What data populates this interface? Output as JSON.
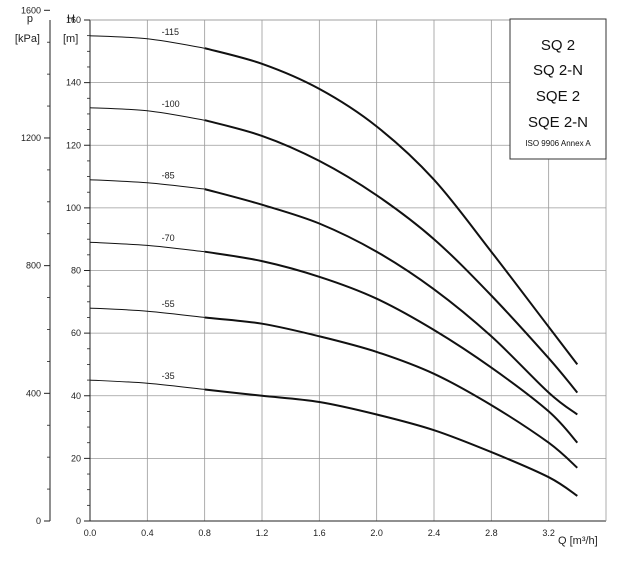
{
  "chart_data": {
    "type": "line",
    "title_lines": [
      "SQ 2",
      "SQ 2-N",
      "SQE 2",
      "SQE 2-N"
    ],
    "subtitle": "ISO 9906 Annex A",
    "xlabel": "Q [m³/h]",
    "ylabel_left": "H",
    "ylabel_left_unit": "[m]",
    "ylabel_left2": "p",
    "ylabel_left2_unit": "[kPa]",
    "xlim": [
      0,
      3.6
    ],
    "ylim": [
      0,
      160
    ],
    "grid": true,
    "x_ticks": [
      0.0,
      0.4,
      0.8,
      1.2,
      1.6,
      2.0,
      2.4,
      2.8,
      3.2
    ],
    "x_tick_labels": [
      "0.0",
      "0.4",
      "0.8",
      "1.2",
      "1.6",
      "2.0",
      "2.4",
      "2.8",
      "3.2"
    ],
    "y_ticks": [
      0,
      20,
      40,
      60,
      80,
      100,
      120,
      140,
      160
    ],
    "y_tick_labels": [
      "0",
      "20",
      "40",
      "60",
      "80",
      "100",
      "120",
      "140",
      "160"
    ],
    "p_ticks": [
      0,
      400,
      800,
      1200,
      1600
    ],
    "p_tick_labels": [
      "0",
      "400",
      "800",
      "1200",
      "1600"
    ],
    "p_per_m": 9.81,
    "series": [
      {
        "name": "-115",
        "x": [
          0.0,
          0.4,
          0.8,
          1.2,
          1.6,
          2.0,
          2.4,
          2.8,
          3.2,
          3.4
        ],
        "values": [
          155,
          154,
          151,
          146,
          138,
          126,
          109,
          86,
          62,
          50
        ]
      },
      {
        "name": "-100",
        "x": [
          0.0,
          0.4,
          0.8,
          1.2,
          1.6,
          2.0,
          2.4,
          2.8,
          3.2,
          3.4
        ],
        "values": [
          132,
          131,
          128,
          123,
          115,
          104,
          90,
          72,
          52,
          41
        ]
      },
      {
        "name": "-85",
        "x": [
          0.0,
          0.4,
          0.8,
          1.2,
          1.6,
          2.0,
          2.4,
          2.8,
          3.2,
          3.4
        ],
        "values": [
          109,
          108,
          106,
          101,
          95,
          86,
          74,
          59,
          41,
          34
        ]
      },
      {
        "name": "-70",
        "x": [
          0.0,
          0.4,
          0.8,
          1.2,
          1.6,
          2.0,
          2.4,
          2.8,
          3.2,
          3.4
        ],
        "values": [
          89,
          88,
          86,
          83,
          78,
          71,
          61,
          49,
          35,
          25
        ]
      },
      {
        "name": "-55",
        "x": [
          0.0,
          0.4,
          0.8,
          1.2,
          1.6,
          2.0,
          2.4,
          2.8,
          3.2,
          3.4
        ],
        "values": [
          68,
          67,
          65,
          63,
          59,
          54,
          47,
          37,
          25,
          17
        ]
      },
      {
        "name": "-35",
        "x": [
          0.0,
          0.4,
          0.8,
          1.2,
          1.6,
          2.0,
          2.4,
          2.8,
          3.2,
          3.4
        ],
        "values": [
          45,
          44,
          42,
          40,
          38,
          34,
          29,
          22,
          14,
          8
        ]
      }
    ]
  }
}
